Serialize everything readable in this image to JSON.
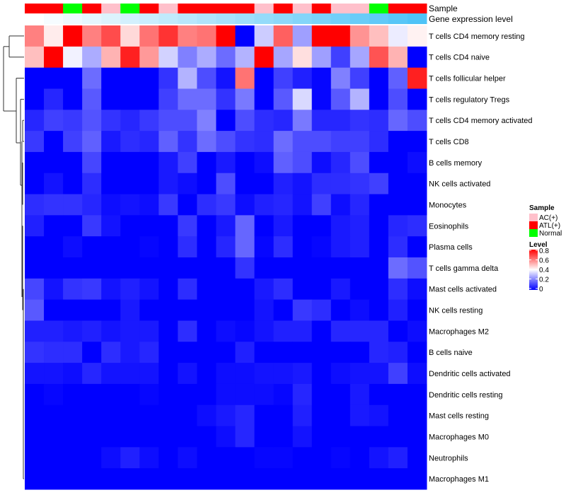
{
  "chart_data": {
    "type": "heatmap",
    "annotation_labels": [
      "Sample",
      "Gene expression level"
    ],
    "samples": [
      "ATL(+)",
      "ATL(+)",
      "Normal",
      "ATL(+)",
      "AC(+)",
      "Normal",
      "ATL(+)",
      "AC(+)",
      "ATL(+)",
      "ATL(+)",
      "ATL(+)",
      "ATL(+)",
      "AC(+)",
      "ATL(+)",
      "AC(+)",
      "ATL(+)",
      "AC(+)",
      "AC(+)",
      "Normal",
      "ATL(+)",
      "ATL(+)"
    ],
    "rows": [
      "T cells CD4 memory resting",
      "T cells CD4 naive",
      "T cells follicular helper",
      "T cells regulatory  Tregs",
      "T cells CD4 memory activated",
      "T cells CD8",
      "B cells memory",
      "NK cells activated",
      "Monocytes",
      "Eosinophils",
      "Plasma cells",
      "T cells gamma delta",
      "Mast cells activated",
      "NK cells resting",
      "Macrophages M2",
      "B cells naive",
      "Dendritic cells activated",
      "Dendritic cells resting",
      "Mast cells resting",
      "Macrophages M0",
      "Neutrophils",
      "Macrophages M1"
    ],
    "values": [
      [
        0.6,
        0.43,
        0.8,
        0.6,
        0.68,
        0.46,
        0.62,
        0.72,
        0.6,
        0.62,
        0.8,
        0,
        0.32,
        0.65,
        0.25,
        0.8,
        0.8,
        0.57,
        0.5,
        0.37,
        0.42
      ],
      [
        0.5,
        0.8,
        0.38,
        0.27,
        0.52,
        0.75,
        0.56,
        0.33,
        0.2,
        0.27,
        0.17,
        0.28,
        0.8,
        0.26,
        0.45,
        0.25,
        0.1,
        0.26,
        0.67,
        0.52,
        0
      ],
      [
        0,
        0,
        0,
        0.17,
        0,
        0,
        0,
        0.08,
        0.28,
        0.12,
        0.03,
        0.62,
        0,
        0.1,
        0.05,
        0.01,
        0.2,
        0.1,
        0,
        0.15,
        0.75
      ],
      [
        0,
        0.06,
        0,
        0.14,
        0,
        0,
        0,
        0.1,
        0.17,
        0.17,
        0.08,
        0.19,
        0,
        0.14,
        0.34,
        0.01,
        0.14,
        0.28,
        0,
        0.12,
        0
      ],
      [
        0.06,
        0.1,
        0.09,
        0.13,
        0.08,
        0.06,
        0.09,
        0.12,
        0.12,
        0.2,
        0,
        0.12,
        0.07,
        0.06,
        0.19,
        0.06,
        0.06,
        0.08,
        0.07,
        0.16,
        0.12
      ],
      [
        0.09,
        0,
        0.1,
        0.15,
        0.04,
        0.07,
        0.06,
        0.15,
        0.08,
        0.17,
        0.12,
        0.08,
        0.07,
        0.17,
        0.12,
        0.12,
        0.1,
        0.1,
        0.07,
        0,
        0
      ],
      [
        0,
        0,
        0,
        0.11,
        0,
        0,
        0,
        0.04,
        0.1,
        0,
        0.04,
        0,
        0.02,
        0.15,
        0.12,
        0.02,
        0.06,
        0.12,
        0,
        0,
        0.02
      ],
      [
        0,
        0.03,
        0,
        0.07,
        0,
        0,
        0,
        0.04,
        0.02,
        0,
        0.12,
        0,
        0,
        0.05,
        0.03,
        0.07,
        0.07,
        0.08,
        0.1,
        0,
        0
      ],
      [
        0.07,
        0.08,
        0.08,
        0.06,
        0.02,
        0.03,
        0.02,
        0.09,
        0,
        0.07,
        0.09,
        0.02,
        0.05,
        0.06,
        0.03,
        0.1,
        0.02,
        0.06,
        0,
        0,
        0
      ],
      [
        0.05,
        0,
        0,
        0.09,
        0.03,
        0,
        0,
        0,
        0.09,
        0,
        0.04,
        0.16,
        0,
        0.04,
        0,
        0,
        0.04,
        0.05,
        0,
        0.06,
        0.07
      ],
      [
        0,
        0,
        0.02,
        0,
        0,
        0,
        0.01,
        0,
        0.07,
        0,
        0.06,
        0.16,
        0.01,
        0.07,
        0,
        0.01,
        0.04,
        0.05,
        0,
        0.07,
        0
      ],
      [
        0,
        0,
        0,
        0,
        0,
        0,
        0,
        0,
        0,
        0,
        0,
        0.08,
        0,
        0,
        0,
        0,
        0,
        0,
        0,
        0.17,
        0.13
      ],
      [
        0.11,
        0.03,
        0.08,
        0.09,
        0.03,
        0.05,
        0.03,
        0,
        0.07,
        0,
        0,
        0,
        0.04,
        0.07,
        0,
        0,
        0.04,
        0,
        0,
        0.07,
        0.02
      ],
      [
        0.14,
        0,
        0,
        0,
        0,
        0.04,
        0,
        0,
        0,
        0,
        0,
        0,
        0.03,
        0,
        0.09,
        0.07,
        0,
        0.02,
        0,
        0.05,
        0
      ],
      [
        0.05,
        0.05,
        0.04,
        0.05,
        0.03,
        0.04,
        0.04,
        0,
        0.07,
        0,
        0.02,
        0.01,
        0.03,
        0.05,
        0.05,
        0,
        0.06,
        0.06,
        0.06,
        0,
        0.02
      ],
      [
        0.08,
        0.07,
        0.07,
        0,
        0.07,
        0.04,
        0.06,
        0,
        0,
        0,
        0,
        0.05,
        0,
        0,
        0,
        0,
        0,
        0,
        0.06,
        0.05,
        0
      ],
      [
        0.03,
        0.03,
        0.02,
        0.06,
        0.03,
        0.03,
        0.03,
        0,
        0.03,
        0,
        0.02,
        0.02,
        0.03,
        0.03,
        0.04,
        0,
        0.02,
        0.03,
        0.03,
        0.1,
        0.02
      ],
      [
        0,
        0.01,
        0,
        0,
        0,
        0,
        0.01,
        0,
        0,
        0,
        0.02,
        0.02,
        0.02,
        0.01,
        0.06,
        0,
        0,
        0.04,
        0,
        0,
        0
      ],
      [
        0,
        0,
        0,
        0,
        0,
        0,
        0,
        0,
        0,
        0.02,
        0.04,
        0.06,
        0,
        0,
        0.05,
        0,
        0,
        0.04,
        0.03,
        0,
        0
      ],
      [
        0,
        0,
        0,
        0,
        0,
        0,
        0,
        0,
        0,
        0,
        0.02,
        0.06,
        0,
        0,
        0.03,
        0,
        0,
        0,
        0,
        0,
        0
      ],
      [
        0,
        0,
        0,
        0,
        0.02,
        0.05,
        0.02,
        0,
        0.02,
        0,
        0,
        0,
        0.01,
        0.01,
        0,
        0,
        0.01,
        0,
        0.03,
        0.05,
        0
      ],
      [
        0,
        0,
        0,
        0,
        0,
        0,
        0,
        0,
        0,
        0,
        0,
        0,
        0,
        0,
        0,
        0,
        0,
        0,
        0,
        0,
        0
      ]
    ],
    "color_scale": {
      "min": 0,
      "mid": 0.4,
      "max": 0.8,
      "low": "#0000FF",
      "middle": "#FFFFFF",
      "high": "#FF0000"
    },
    "legend": {
      "placement": "right",
      "sample_title": "Sample",
      "sample_entries": [
        {
          "label": "AC(+)",
          "color": "#FFC0CB"
        },
        {
          "label": "ATL(+)",
          "color": "#FF0000"
        },
        {
          "label": "Normal",
          "color": "#00FF00"
        }
      ],
      "level_title": "Level",
      "level_ticks": [
        "0.8",
        "0.6",
        "0.4",
        "0.2",
        "0"
      ]
    },
    "gene_level_colors": {
      "low": "#FFFFFF",
      "high": "#4FC3F7"
    }
  }
}
